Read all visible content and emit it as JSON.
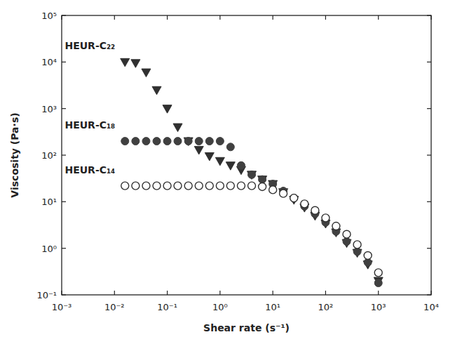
{
  "chart_data": {
    "type": "scatter",
    "x_label": "Shear rate (s⁻¹)",
    "y_label": "Viscosity (Pa·s)",
    "log": true,
    "grid": false,
    "xlim": [
      0.001,
      10000
    ],
    "ylim": [
      0.1,
      100000
    ],
    "xticks": [
      {
        "value": 0.001,
        "label": "10⁻³"
      },
      {
        "value": 0.01,
        "label": "10⁻²"
      },
      {
        "value": 0.1,
        "label": "10⁻¹"
      },
      {
        "value": 1,
        "label": "10⁰"
      },
      {
        "value": 10,
        "label": "10¹"
      },
      {
        "value": 100,
        "label": "10²"
      },
      {
        "value": 1000,
        "label": "10³"
      },
      {
        "value": 10000,
        "label": "10⁴"
      }
    ],
    "yticks": [
      {
        "value": 0.1,
        "label": "10⁻¹"
      },
      {
        "value": 1,
        "label": "10⁰"
      },
      {
        "value": 10,
        "label": "10¹"
      },
      {
        "value": 100,
        "label": "10²"
      },
      {
        "value": 1000,
        "label": "10³"
      },
      {
        "value": 10000,
        "label": "10⁴"
      },
      {
        "value": 100000,
        "label": "10⁵"
      }
    ],
    "x": [
      0.0158,
      0.0251,
      0.0398,
      0.0631,
      0.1,
      0.158,
      0.251,
      0.398,
      0.631,
      1,
      1.58,
      2.51,
      3.98,
      6.31,
      10,
      15.8,
      25.1,
      39.8,
      63.1,
      100,
      158,
      251,
      398,
      631,
      1000
    ],
    "series": [
      {
        "name": "HEUR-C₂₂",
        "color": "#303030",
        "marker": "triangle_down",
        "values": [
          10000,
          9500,
          6000,
          2500,
          1000,
          400,
          200,
          130,
          95,
          75,
          60,
          48,
          38,
          30,
          24,
          16,
          11,
          7.5,
          5,
          3.4,
          2.2,
          1.3,
          0.8,
          0.45,
          0.2
        ]
      },
      {
        "name": "HEUR-C₁₈",
        "color": "#404040",
        "marker": "circle",
        "values": [
          200,
          200,
          200,
          200,
          200,
          200,
          200,
          200,
          200,
          200,
          150,
          60,
          38,
          30,
          24,
          17,
          12,
          8,
          5.5,
          3.6,
          2.3,
          1.4,
          0.85,
          0.5,
          0.18
        ]
      },
      {
        "name": "HEUR-C₁₄",
        "color": "#303030",
        "marker": "circle_open",
        "values": [
          22,
          22,
          22,
          22,
          22,
          22,
          22,
          22,
          22,
          22,
          22,
          22,
          22,
          21,
          18,
          15,
          12,
          9,
          6.5,
          4.5,
          3,
          2,
          1.2,
          0.7,
          0.3
        ]
      }
    ]
  }
}
